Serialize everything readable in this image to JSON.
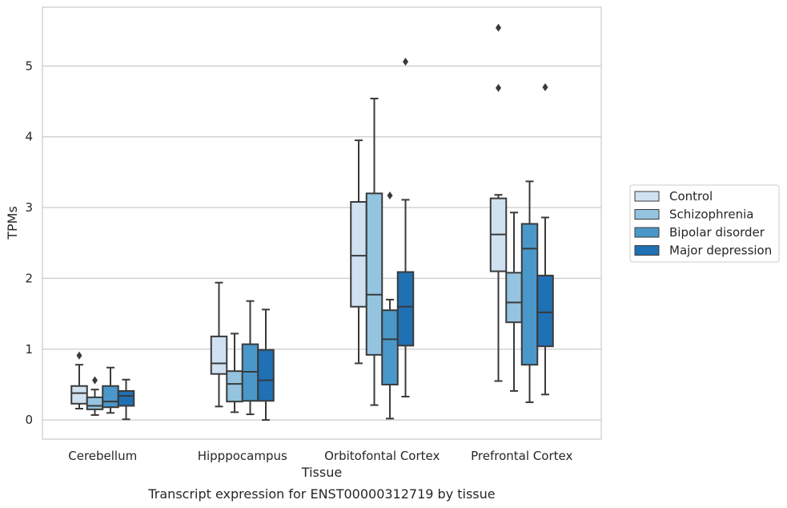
{
  "chart_data": {
    "type": "box",
    "caption": "Transcript expression for ENST00000312719 by tissue",
    "xlabel": "Tissue",
    "ylabel": "TPMs",
    "ylim": [
      -0.27,
      5.83
    ],
    "yticks": [
      0,
      1,
      2,
      3,
      4,
      5
    ],
    "grid": "horizontal",
    "legend_position": "right",
    "categories": [
      "Cerebellum",
      "Hipppocampus",
      "Orbitofontal Cortex",
      "Prefrontal Cortex"
    ],
    "series": [
      {
        "name": "Control",
        "color": "#d0e1f2",
        "boxes": [
          {
            "whislo": 0.16,
            "q1": 0.23,
            "med": 0.38,
            "q3": 0.48,
            "whishi": 0.78,
            "fliers": [
              0.91
            ]
          },
          {
            "whislo": 0.19,
            "q1": 0.65,
            "med": 0.8,
            "q3": 1.18,
            "whishi": 1.94,
            "fliers": []
          },
          {
            "whislo": 0.8,
            "q1": 1.6,
            "med": 2.32,
            "q3": 3.08,
            "whishi": 3.95,
            "fliers": []
          },
          {
            "whislo": 0.55,
            "q1": 2.1,
            "med": 2.62,
            "q3": 3.13,
            "whishi": 3.18,
            "fliers": [
              4.69,
              5.54
            ]
          }
        ]
      },
      {
        "name": "Schizophrenia",
        "color": "#94c4df",
        "boxes": [
          {
            "whislo": 0.07,
            "q1": 0.15,
            "med": 0.2,
            "q3": 0.32,
            "whishi": 0.43,
            "fliers": [
              0.56
            ]
          },
          {
            "whislo": 0.11,
            "q1": 0.26,
            "med": 0.51,
            "q3": 0.69,
            "whishi": 1.22,
            "fliers": []
          },
          {
            "whislo": 0.21,
            "q1": 0.92,
            "med": 1.77,
            "q3": 3.2,
            "whishi": 4.54,
            "fliers": []
          },
          {
            "whislo": 0.41,
            "q1": 1.38,
            "med": 1.66,
            "q3": 2.08,
            "whishi": 2.93,
            "fliers": []
          }
        ]
      },
      {
        "name": "Bipolar disorder",
        "color": "#4a98c9",
        "boxes": [
          {
            "whislo": 0.1,
            "q1": 0.18,
            "med": 0.26,
            "q3": 0.48,
            "whishi": 0.74,
            "fliers": []
          },
          {
            "whislo": 0.08,
            "q1": 0.27,
            "med": 0.68,
            "q3": 1.07,
            "whishi": 1.68,
            "fliers": []
          },
          {
            "whislo": 0.02,
            "q1": 0.5,
            "med": 1.14,
            "q3": 1.55,
            "whishi": 1.7,
            "fliers": [
              3.17
            ]
          },
          {
            "whislo": 0.25,
            "q1": 0.78,
            "med": 2.42,
            "q3": 2.77,
            "whishi": 3.37,
            "fliers": []
          }
        ]
      },
      {
        "name": "Major depression",
        "color": "#2070b4",
        "boxes": [
          {
            "whislo": 0.01,
            "q1": 0.2,
            "med": 0.34,
            "q3": 0.41,
            "whishi": 0.57,
            "fliers": []
          },
          {
            "whislo": 0.0,
            "q1": 0.27,
            "med": 0.56,
            "q3": 0.99,
            "whishi": 1.56,
            "fliers": []
          },
          {
            "whislo": 0.33,
            "q1": 1.05,
            "med": 1.6,
            "q3": 2.09,
            "whishi": 3.11,
            "fliers": [
              5.06
            ]
          },
          {
            "whislo": 0.36,
            "q1": 1.04,
            "med": 1.52,
            "q3": 2.04,
            "whishi": 2.86,
            "fliers": [
              4.7
            ]
          }
        ]
      }
    ]
  }
}
